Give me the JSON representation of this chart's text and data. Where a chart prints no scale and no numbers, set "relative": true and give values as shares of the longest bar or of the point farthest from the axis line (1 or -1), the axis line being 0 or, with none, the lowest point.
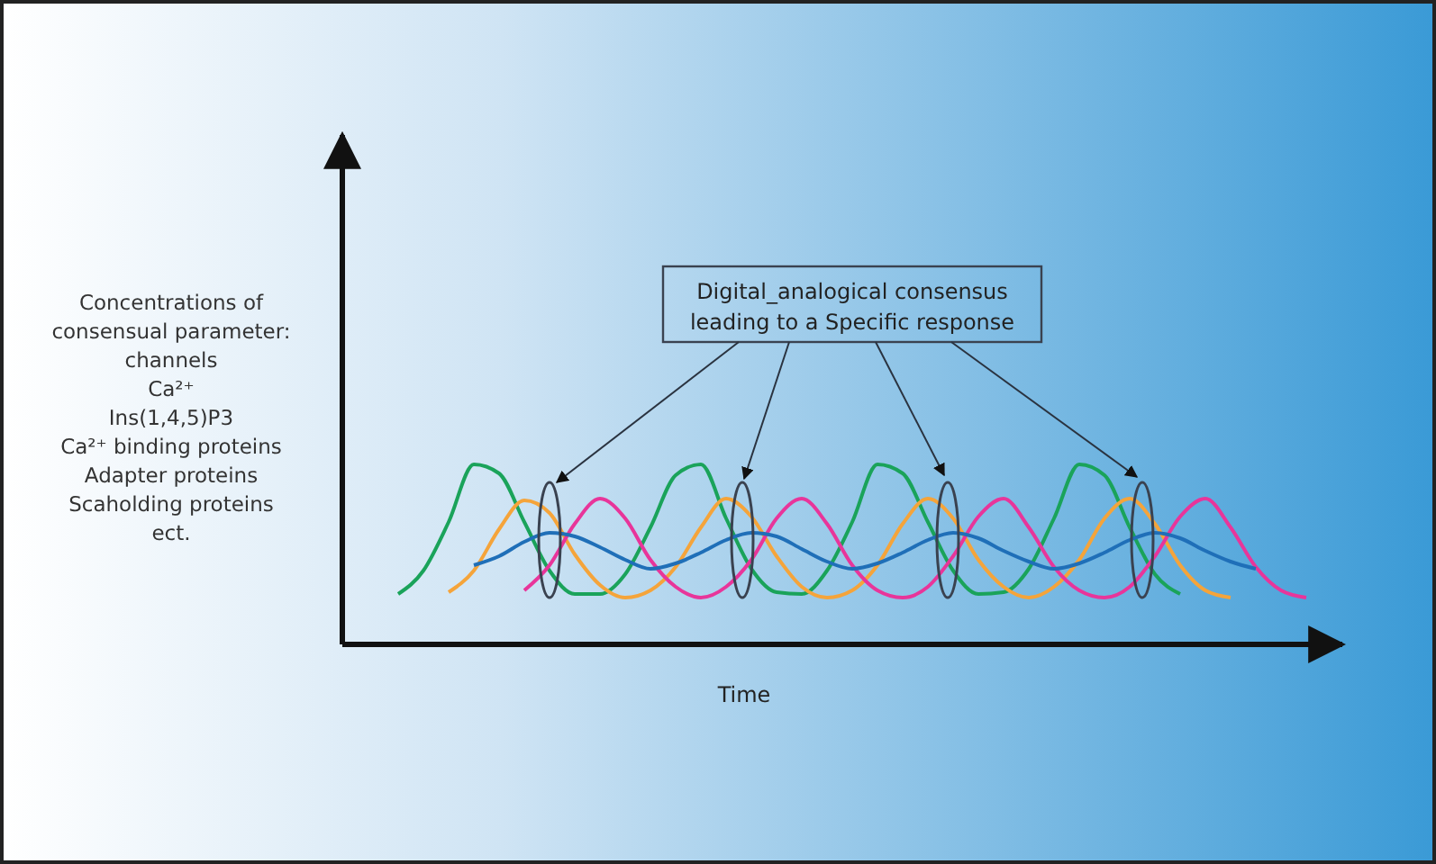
{
  "chart_data": {
    "type": "line",
    "relative": true,
    "xlabel": "Time",
    "ylabel": "Concentrations of\nconsensual parameter:\nchannels\nCa²⁺\nIns(1,4,5)P3\nCa²⁺ binding proteins\nAdapter proteins\nScaholding proteins\nect.",
    "annotations": [
      "Digital_analogical consensus\nleading to a Specific response"
    ],
    "categories": [
      null,
      null,
      null,
      null,
      null,
      null,
      null,
      null,
      null,
      null,
      null,
      null,
      null,
      null,
      null,
      null,
      null,
      null,
      null,
      null,
      null,
      null,
      null,
      null,
      null,
      null,
      null,
      null,
      null,
      null,
      null,
      null,
      null,
      null,
      null,
      null,
      null
    ],
    "marker": "none",
    "legend": false,
    "series": [
      {
        "color": "#1aa35a",
        "values": [
          0.28,
          0.41,
          0.68,
          1,
          0.95,
          0.68,
          0.41,
          0.28,
          0.28,
          0.39,
          0.65,
          0.94,
          1,
          0.7,
          0.42,
          0.29,
          0.28,
          0.41,
          0.68,
          1,
          0.95,
          0.68,
          0.41,
          0.28,
          0.29,
          0.42,
          0.7,
          1,
          0.94,
          0.65,
          0.39,
          0.28,
          null,
          null,
          null,
          null,
          null
        ]
      },
      {
        "color": "#f5a43a",
        "values": [
          null,
          null,
          0.29,
          0.41,
          0.64,
          0.8,
          0.73,
          0.5,
          0.33,
          0.26,
          0.3,
          0.43,
          0.65,
          0.81,
          0.71,
          0.49,
          0.32,
          0.26,
          0.3,
          0.44,
          0.67,
          0.81,
          0.7,
          0.47,
          0.32,
          0.26,
          0.32,
          0.47,
          0.7,
          0.81,
          0.67,
          0.44,
          0.3,
          0.26,
          null,
          null,
          null
        ]
      },
      {
        "color": "#e8359a",
        "values": [
          null,
          null,
          null,
          null,
          null,
          0.3,
          0.44,
          0.67,
          0.81,
          0.7,
          0.47,
          0.32,
          0.26,
          0.32,
          0.47,
          0.7,
          0.81,
          0.67,
          0.44,
          0.3,
          0.26,
          0.32,
          0.49,
          0.71,
          0.81,
          0.65,
          0.43,
          0.3,
          0.26,
          0.32,
          0.49,
          0.71,
          0.81,
          0.65,
          0.43,
          0.3,
          0.26
        ]
      },
      {
        "color": "#1f6fb8",
        "values": [
          null,
          null,
          null,
          0.44,
          0.49,
          0.57,
          0.62,
          0.6,
          0.54,
          0.47,
          0.42,
          0.45,
          0.51,
          0.58,
          0.62,
          0.6,
          0.53,
          0.46,
          0.42,
          0.45,
          0.51,
          0.58,
          0.62,
          0.59,
          0.52,
          0.46,
          0.42,
          0.45,
          0.51,
          0.58,
          0.62,
          0.59,
          0.52,
          0.46,
          0.42,
          null,
          null
        ]
      }
    ]
  }
}
